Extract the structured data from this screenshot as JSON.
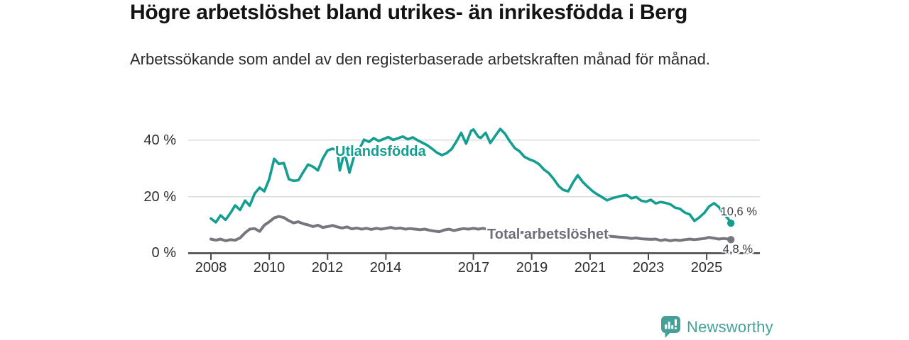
{
  "title": "Högre arbetslöshet bland utrikes- än inrikesfödda i Berg",
  "subtitle": "Arbetssökande som andel av den registerbaserade arbetskraften månad för månad.",
  "branding": {
    "name": "Newsworthy",
    "color": "#45a198",
    "icon": "bar-chart-speech-bubble"
  },
  "chart_data": {
    "type": "line",
    "title": "Högre arbetslöshet bland utrikes- än inrikesfödda i Berg",
    "xlabel": "",
    "ylabel": "",
    "grid": "horizontal-light",
    "legend_position": "inline-labels",
    "xlim": [
      2007.22,
      2026.75
    ],
    "ylim": [
      0,
      47
    ],
    "x_ticks": [
      {
        "value": 2008,
        "label": "2008"
      },
      {
        "value": 2010,
        "label": "2010"
      },
      {
        "value": 2012,
        "label": "2012"
      },
      {
        "value": 2014,
        "label": "2014"
      },
      {
        "value": 2017,
        "label": "2017"
      },
      {
        "value": 2019,
        "label": "2019"
      },
      {
        "value": 2021,
        "label": "2021"
      },
      {
        "value": 2023,
        "label": "2023"
      },
      {
        "value": 2025,
        "label": "2025"
      }
    ],
    "y_ticks": [
      {
        "value": 0,
        "label": "0 %"
      },
      {
        "value": 20,
        "label": "20 %"
      },
      {
        "value": 40,
        "label": "40 %"
      }
    ],
    "axis_color": "#4a4a4a",
    "grid_color": "#d9d9d9",
    "series": [
      {
        "name": "Utlandsfödda",
        "color": "#149e92",
        "end_label": "10,6 %",
        "end_value": 10.6,
        "points": [
          [
            2008.0,
            12.3
          ],
          [
            2008.17,
            10.9
          ],
          [
            2008.33,
            13.4
          ],
          [
            2008.5,
            11.8
          ],
          [
            2008.67,
            14.2
          ],
          [
            2008.83,
            16.9
          ],
          [
            2009.0,
            15.3
          ],
          [
            2009.17,
            18.6
          ],
          [
            2009.33,
            16.8
          ],
          [
            2009.5,
            21.1
          ],
          [
            2009.67,
            23.2
          ],
          [
            2009.83,
            21.9
          ],
          [
            2010.0,
            26.3
          ],
          [
            2010.17,
            33.4
          ],
          [
            2010.33,
            31.6
          ],
          [
            2010.5,
            31.9
          ],
          [
            2010.67,
            26.2
          ],
          [
            2010.83,
            25.6
          ],
          [
            2011.0,
            25.8
          ],
          [
            2011.17,
            28.8
          ],
          [
            2011.33,
            31.4
          ],
          [
            2011.5,
            30.6
          ],
          [
            2011.67,
            29.3
          ],
          [
            2011.83,
            33.4
          ],
          [
            2012.0,
            36.4
          ],
          [
            2012.17,
            37.0
          ],
          [
            2012.33,
            36.4
          ],
          [
            2012.42,
            29.3
          ],
          [
            2012.58,
            35.9
          ],
          [
            2012.75,
            28.5
          ],
          [
            2012.92,
            34.8
          ],
          [
            2013.08,
            36.6
          ],
          [
            2013.25,
            40.2
          ],
          [
            2013.42,
            39.4
          ],
          [
            2013.58,
            40.7
          ],
          [
            2013.75,
            39.7
          ],
          [
            2013.92,
            40.4
          ],
          [
            2014.08,
            41.1
          ],
          [
            2014.25,
            40.1
          ],
          [
            2014.42,
            40.7
          ],
          [
            2014.58,
            41.3
          ],
          [
            2014.75,
            40.3
          ],
          [
            2014.92,
            41.0
          ],
          [
            2015.08,
            40.0
          ],
          [
            2015.25,
            39.1
          ],
          [
            2015.42,
            38.2
          ],
          [
            2015.58,
            37.0
          ],
          [
            2015.75,
            35.6
          ],
          [
            2015.92,
            34.7
          ],
          [
            2016.08,
            35.4
          ],
          [
            2016.25,
            36.8
          ],
          [
            2016.42,
            39.6
          ],
          [
            2016.58,
            42.6
          ],
          [
            2016.75,
            38.8
          ],
          [
            2016.92,
            43.3
          ],
          [
            2017.0,
            43.8
          ],
          [
            2017.17,
            41.2
          ],
          [
            2017.25,
            40.8
          ],
          [
            2017.42,
            42.6
          ],
          [
            2017.58,
            39.0
          ],
          [
            2017.75,
            41.5
          ],
          [
            2017.92,
            44.0
          ],
          [
            2018.08,
            42.3
          ],
          [
            2018.25,
            39.6
          ],
          [
            2018.42,
            37.2
          ],
          [
            2018.58,
            36.1
          ],
          [
            2018.75,
            34.1
          ],
          [
            2018.92,
            33.2
          ],
          [
            2019.08,
            32.6
          ],
          [
            2019.25,
            31.5
          ],
          [
            2019.42,
            29.6
          ],
          [
            2019.58,
            28.4
          ],
          [
            2019.75,
            26.3
          ],
          [
            2019.92,
            23.8
          ],
          [
            2020.08,
            22.4
          ],
          [
            2020.25,
            21.9
          ],
          [
            2020.42,
            25.1
          ],
          [
            2020.58,
            27.6
          ],
          [
            2020.75,
            25.2
          ],
          [
            2020.92,
            23.5
          ],
          [
            2021.08,
            22.0
          ],
          [
            2021.25,
            20.8
          ],
          [
            2021.42,
            19.8
          ],
          [
            2021.58,
            18.7
          ],
          [
            2021.75,
            19.4
          ],
          [
            2021.92,
            19.9
          ],
          [
            2022.08,
            20.3
          ],
          [
            2022.25,
            20.6
          ],
          [
            2022.42,
            19.4
          ],
          [
            2022.58,
            19.9
          ],
          [
            2022.75,
            18.6
          ],
          [
            2022.92,
            18.2
          ],
          [
            2023.08,
            18.9
          ],
          [
            2023.25,
            17.6
          ],
          [
            2023.42,
            18.1
          ],
          [
            2023.58,
            17.8
          ],
          [
            2023.75,
            17.3
          ],
          [
            2023.92,
            16.1
          ],
          [
            2024.08,
            15.7
          ],
          [
            2024.25,
            14.4
          ],
          [
            2024.42,
            13.7
          ],
          [
            2024.58,
            11.4
          ],
          [
            2024.75,
            12.7
          ],
          [
            2024.92,
            14.3
          ],
          [
            2025.08,
            16.5
          ],
          [
            2025.25,
            17.7
          ],
          [
            2025.42,
            16.3
          ],
          [
            2025.58,
            14.0
          ],
          [
            2025.75,
            12.0
          ],
          [
            2025.83,
            10.6
          ]
        ]
      },
      {
        "name": "Total arbetslöshet",
        "color": "#76767e",
        "end_label": "4,8 %",
        "end_value": 4.8,
        "points": [
          [
            2008.0,
            5.0
          ],
          [
            2008.17,
            4.6
          ],
          [
            2008.33,
            5.0
          ],
          [
            2008.5,
            4.4
          ],
          [
            2008.67,
            4.8
          ],
          [
            2008.83,
            4.6
          ],
          [
            2009.0,
            5.4
          ],
          [
            2009.17,
            7.2
          ],
          [
            2009.33,
            8.5
          ],
          [
            2009.5,
            8.7
          ],
          [
            2009.67,
            7.7
          ],
          [
            2009.83,
            9.9
          ],
          [
            2010.0,
            11.1
          ],
          [
            2010.17,
            12.5
          ],
          [
            2010.33,
            13.0
          ],
          [
            2010.5,
            12.6
          ],
          [
            2010.67,
            11.5
          ],
          [
            2010.83,
            10.7
          ],
          [
            2011.0,
            11.1
          ],
          [
            2011.17,
            10.4
          ],
          [
            2011.33,
            10.0
          ],
          [
            2011.5,
            9.4
          ],
          [
            2011.67,
            9.9
          ],
          [
            2011.83,
            9.1
          ],
          [
            2012.0,
            9.4
          ],
          [
            2012.17,
            9.8
          ],
          [
            2012.33,
            9.3
          ],
          [
            2012.5,
            8.9
          ],
          [
            2012.67,
            9.3
          ],
          [
            2012.83,
            8.6
          ],
          [
            2013.0,
            8.9
          ],
          [
            2013.17,
            8.5
          ],
          [
            2013.33,
            8.8
          ],
          [
            2013.5,
            8.4
          ],
          [
            2013.67,
            8.8
          ],
          [
            2013.83,
            8.5
          ],
          [
            2014.0,
            8.8
          ],
          [
            2014.17,
            9.1
          ],
          [
            2014.33,
            8.7
          ],
          [
            2014.5,
            8.9
          ],
          [
            2014.67,
            8.5
          ],
          [
            2014.83,
            8.7
          ],
          [
            2015.0,
            8.5
          ],
          [
            2015.17,
            8.3
          ],
          [
            2015.33,
            8.5
          ],
          [
            2015.5,
            8.1
          ],
          [
            2015.67,
            7.8
          ],
          [
            2015.83,
            7.6
          ],
          [
            2016.0,
            8.2
          ],
          [
            2016.17,
            8.5
          ],
          [
            2016.33,
            8.0
          ],
          [
            2016.5,
            8.4
          ],
          [
            2016.67,
            8.7
          ],
          [
            2016.83,
            8.5
          ],
          [
            2017.0,
            8.8
          ],
          [
            2017.17,
            8.5
          ],
          [
            2017.33,
            8.8
          ],
          [
            2017.5,
            8.4
          ],
          [
            2017.67,
            7.9
          ],
          [
            2017.83,
            7.6
          ],
          [
            2018.0,
            7.8
          ],
          [
            2018.25,
            7.5
          ],
          [
            2018.5,
            7.2
          ],
          [
            2018.75,
            7.4
          ],
          [
            2019.0,
            7.1
          ],
          [
            2019.25,
            6.9
          ],
          [
            2019.5,
            7.0
          ],
          [
            2019.75,
            6.8
          ],
          [
            2020.0,
            7.0
          ],
          [
            2020.25,
            7.3
          ],
          [
            2020.5,
            7.6
          ],
          [
            2020.75,
            7.2
          ],
          [
            2021.0,
            6.8
          ],
          [
            2021.25,
            6.4
          ],
          [
            2021.5,
            6.1
          ],
          [
            2021.75,
            5.9
          ],
          [
            2022.0,
            5.7
          ],
          [
            2022.25,
            5.5
          ],
          [
            2022.42,
            5.2
          ],
          [
            2022.58,
            5.4
          ],
          [
            2022.75,
            5.1
          ],
          [
            2022.92,
            5.0
          ],
          [
            2023.08,
            4.9
          ],
          [
            2023.25,
            5.0
          ],
          [
            2023.42,
            4.5
          ],
          [
            2023.58,
            4.8
          ],
          [
            2023.75,
            4.4
          ],
          [
            2023.92,
            4.7
          ],
          [
            2024.08,
            4.5
          ],
          [
            2024.25,
            4.8
          ],
          [
            2024.42,
            5.0
          ],
          [
            2024.58,
            4.8
          ],
          [
            2024.75,
            5.0
          ],
          [
            2024.92,
            5.2
          ],
          [
            2025.08,
            5.6
          ],
          [
            2025.25,
            5.3
          ],
          [
            2025.42,
            5.0
          ],
          [
            2025.58,
            5.2
          ],
          [
            2025.75,
            5.0
          ],
          [
            2025.83,
            4.8
          ]
        ]
      }
    ]
  }
}
